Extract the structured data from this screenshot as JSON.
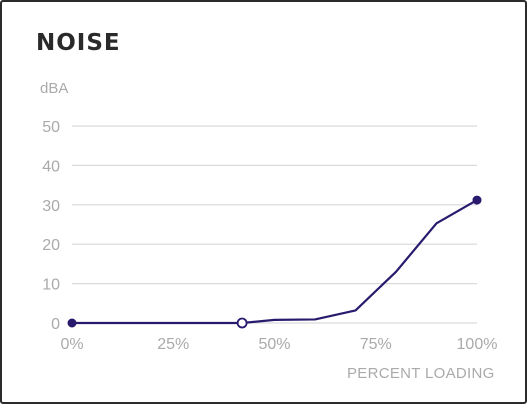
{
  "chart_data": {
    "type": "line",
    "title": "NOISE",
    "ylabel": "dBA",
    "xlabel": "PERCENT LOADING",
    "x_ticks": [
      "0%",
      "25%",
      "50%",
      "75%",
      "100%"
    ],
    "y_ticks": [
      "0",
      "10",
      "20",
      "30",
      "40",
      "50"
    ],
    "xlim": [
      0,
      100
    ],
    "ylim": [
      0,
      50
    ],
    "grid": true,
    "series": [
      {
        "values": [
          [
            0,
            0
          ],
          [
            42,
            0
          ],
          [
            50,
            0.8
          ],
          [
            60,
            0.9
          ],
          [
            70,
            3.2
          ],
          [
            80,
            13
          ],
          [
            90,
            25.3
          ],
          [
            100,
            31.2
          ]
        ]
      }
    ],
    "markers": [
      {
        "x": 0,
        "y": 0,
        "style": "filled"
      },
      {
        "x": 42,
        "y": 0,
        "style": "open"
      },
      {
        "x": 100,
        "y": 31.2,
        "style": "filled"
      }
    ],
    "colors": {
      "line": "#2a1a6e",
      "grid": "#d9d9d9",
      "tick": "#aaaaaa",
      "title": "#2a2a2a"
    }
  }
}
